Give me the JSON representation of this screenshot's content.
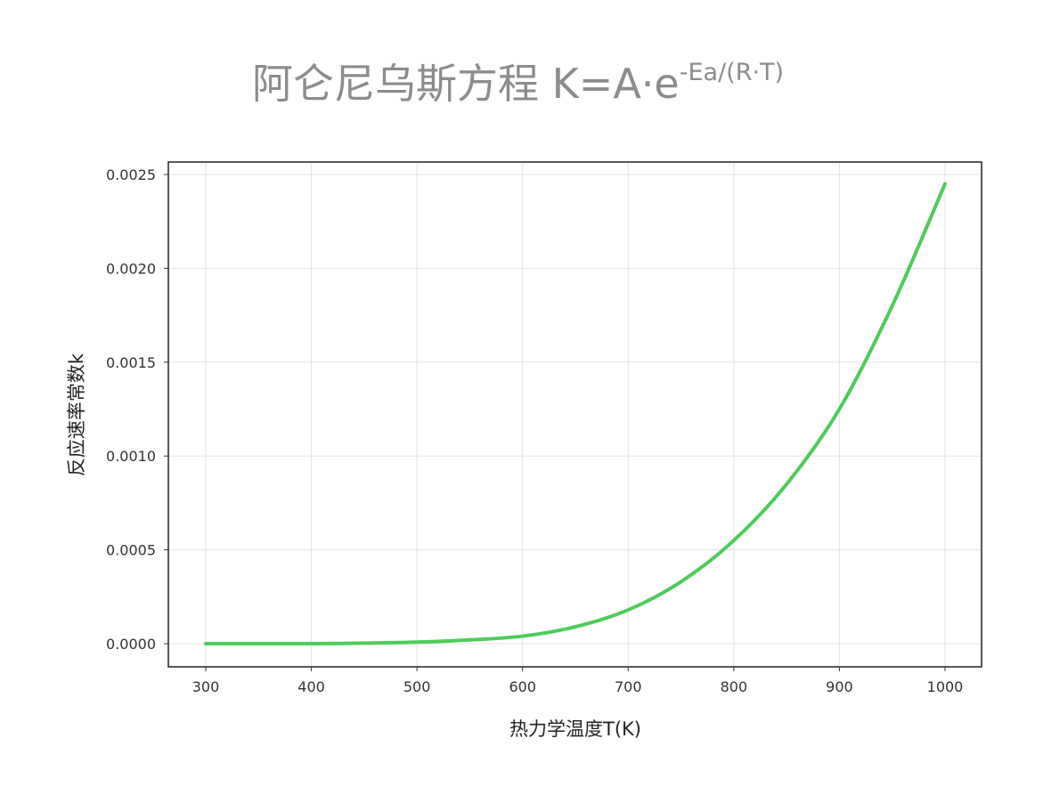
{
  "chart_data": {
    "type": "line",
    "title": "阿仑尼乌斯方程 K=A·e",
    "title_superscript": "-Ea/(R·T)",
    "xlabel": "热力学温度T(K)",
    "ylabel": "反应速率常数k",
    "xlim": [
      300,
      1000
    ],
    "ylim": [
      0,
      0.0025
    ],
    "xticks": [
      300,
      400,
      500,
      600,
      700,
      800,
      900,
      1000
    ],
    "xtick_labels": [
      "300",
      "400",
      "500",
      "600",
      "700",
      "800",
      "900",
      "1000"
    ],
    "yticks": [
      0,
      0.0005,
      0.001,
      0.0015,
      0.002,
      0.0025
    ],
    "ytick_labels": [
      "0.0000",
      "0.0005",
      "0.0010",
      "0.0015",
      "0.0020",
      "0.0025"
    ],
    "grid": true,
    "series": [
      {
        "color": "#4dcc5a",
        "x": [
          300,
          350,
          400,
          450,
          500,
          550,
          600,
          650,
          700,
          750,
          800,
          850,
          900,
          950,
          1000
        ],
        "y": [
          0.0,
          0.0,
          0.0,
          3e-06,
          8e-06,
          2e-05,
          4e-05,
          9e-05,
          0.00018,
          0.00033,
          0.00055,
          0.00085,
          0.00125,
          0.0018,
          0.00245
        ]
      }
    ]
  }
}
